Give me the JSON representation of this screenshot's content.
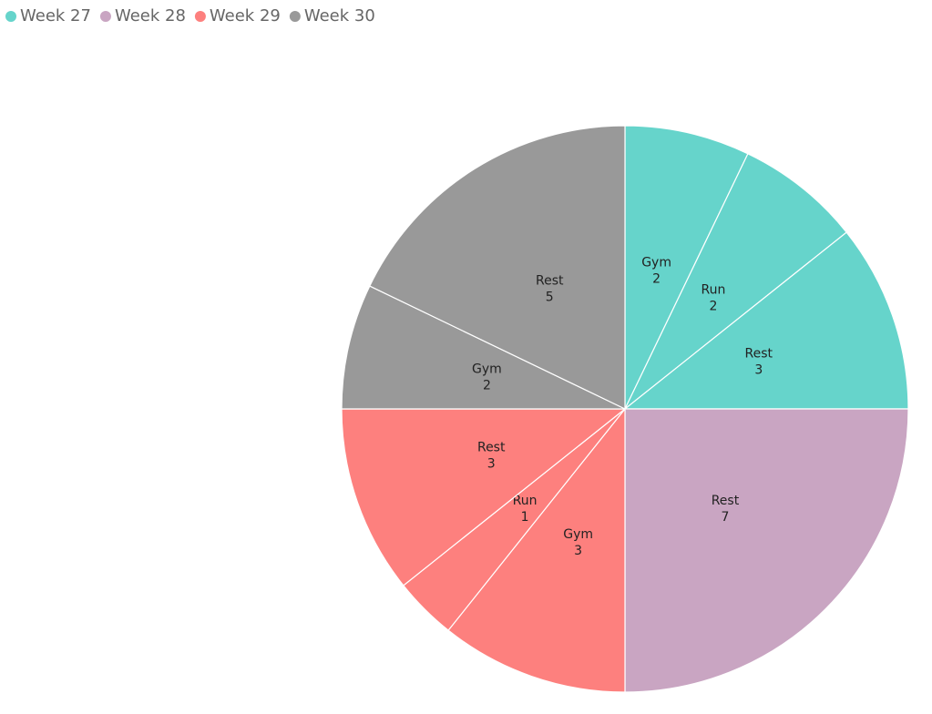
{
  "chart_data": {
    "type": "pie",
    "series": [
      {
        "name": "Week 27",
        "color": "#66d4cb",
        "categories": [
          "Gym",
          "Run",
          "Rest"
        ],
        "values": [
          2,
          2,
          3
        ]
      },
      {
        "name": "Week 28",
        "color": "#c9a5c2",
        "categories": [
          "Rest"
        ],
        "values": [
          7
        ]
      },
      {
        "name": "Week 29",
        "color": "#fd807e",
        "categories": [
          "Gym",
          "Run",
          "Rest"
        ],
        "values": [
          3,
          1,
          3
        ]
      },
      {
        "name": "Week 30",
        "color": "#999999",
        "categories": [
          "Gym",
          "Rest"
        ],
        "values": [
          2,
          5
        ]
      }
    ],
    "legend": "top-left"
  }
}
